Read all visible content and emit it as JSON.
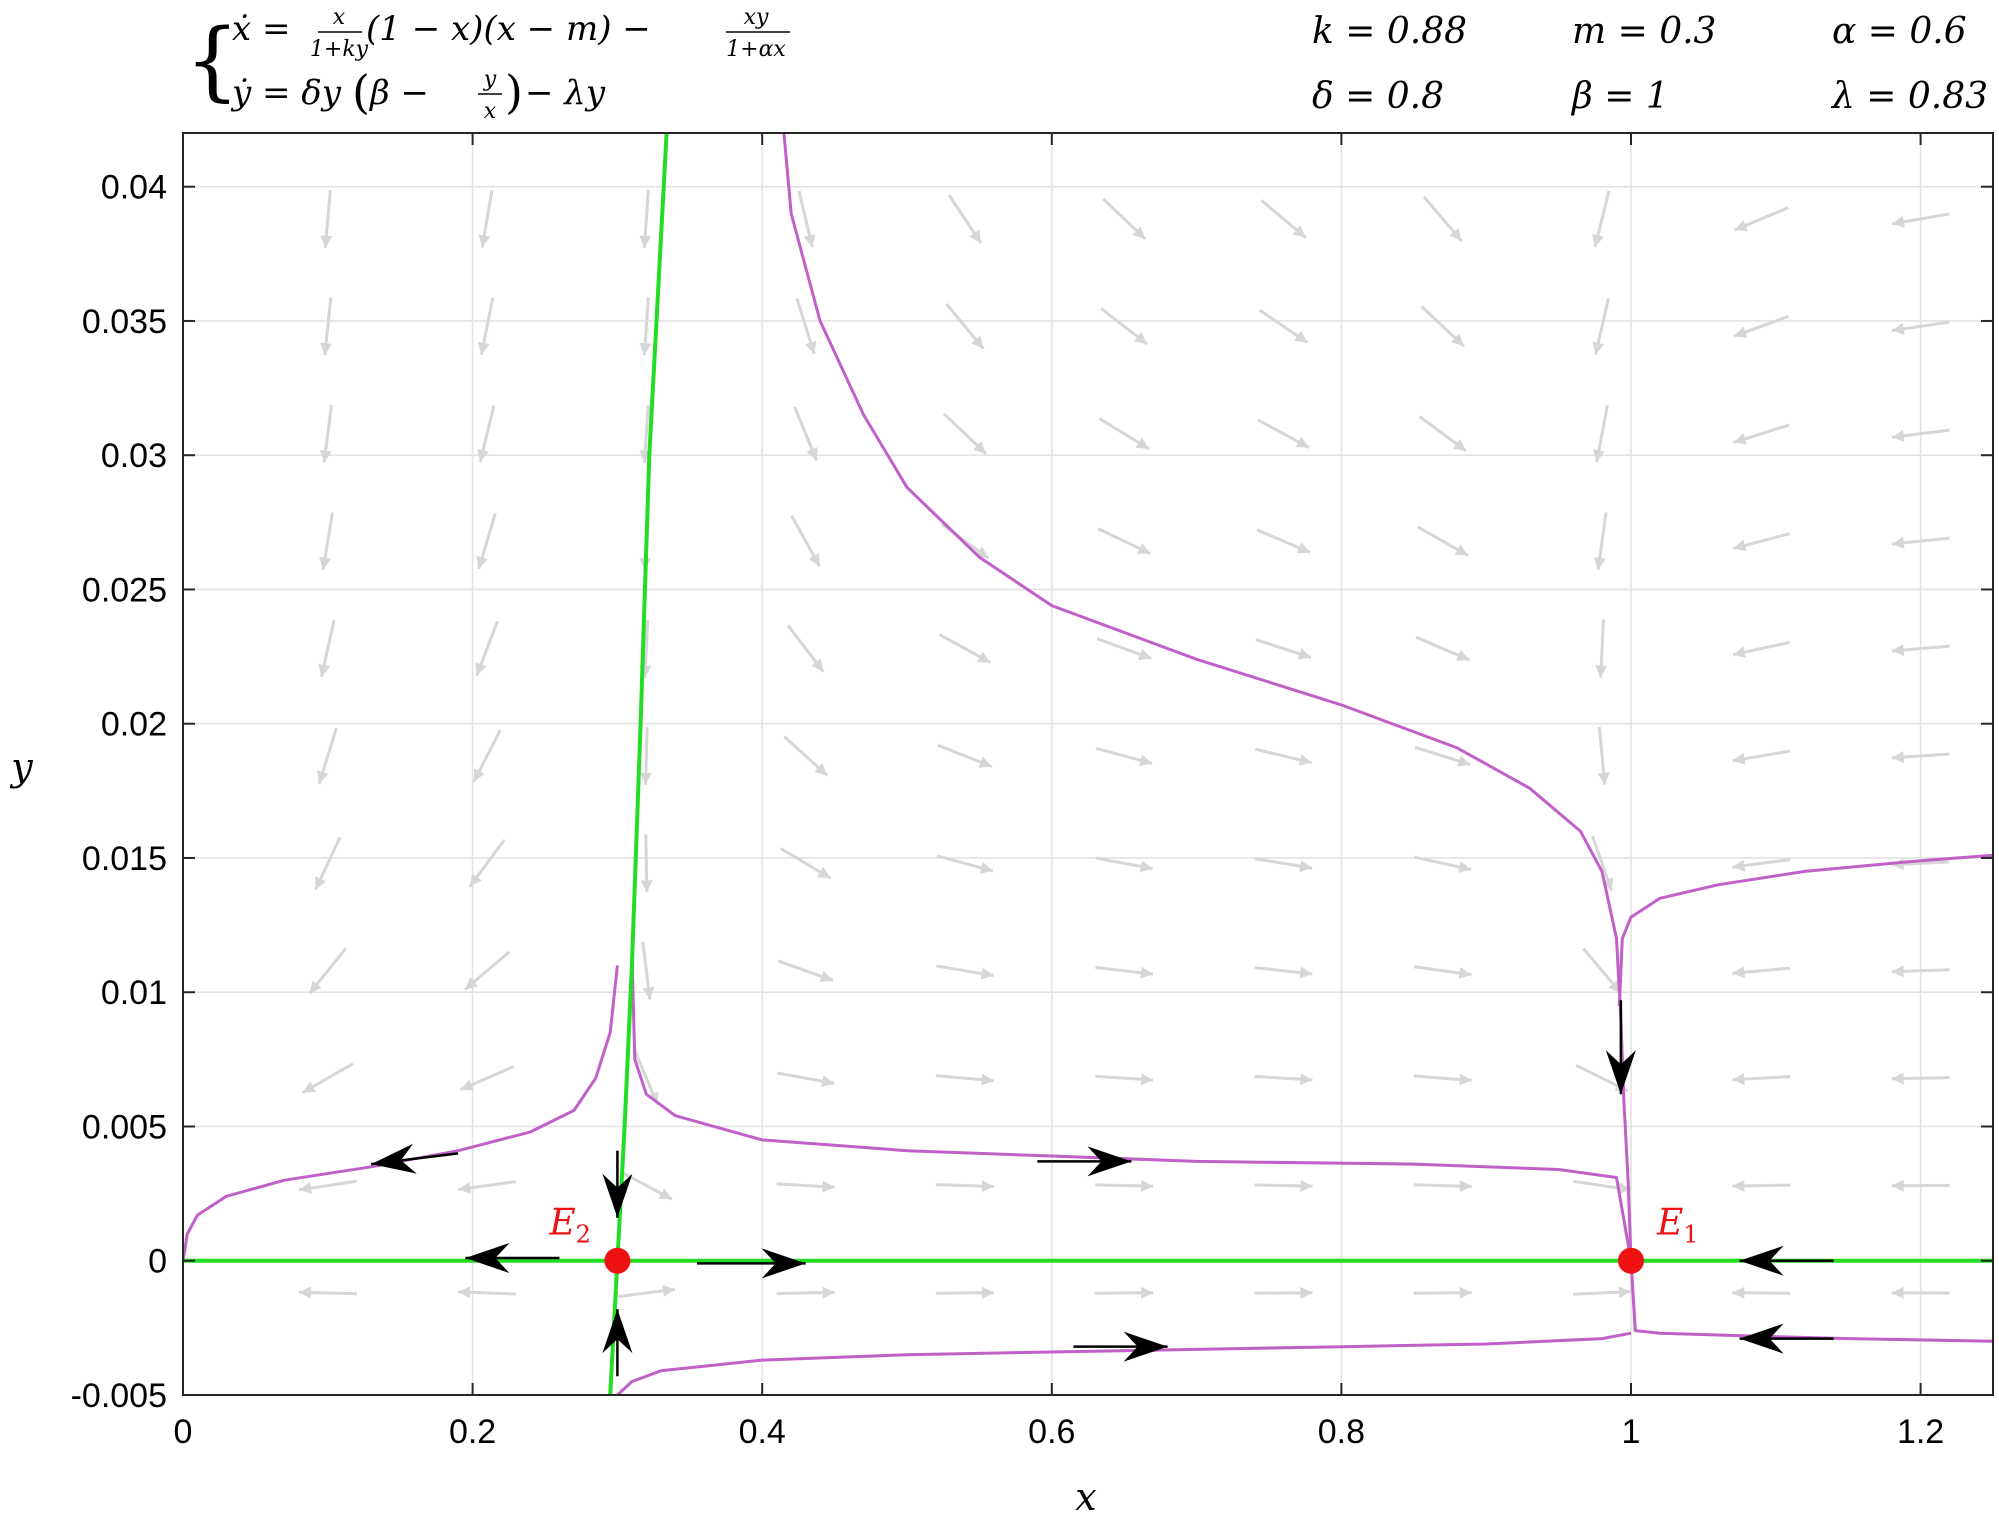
{
  "equations": {
    "line1": {
      "lhs": "ẋ = ",
      "frac1_num": "x",
      "frac1_den": "1+ky",
      "middle": "(1 − x)(x − m) − ",
      "frac2_num": "xy",
      "frac2_den": "1+αx"
    },
    "line2": {
      "lhs": "ẏ = δy",
      "paren_open": "(",
      "inner": "β − ",
      "frac_num": "y",
      "frac_den": "x",
      "paren_close": ")",
      "tail": " − λy"
    }
  },
  "parameters": [
    {
      "label": "k = 0.88"
    },
    {
      "label": "m = 0.3"
    },
    {
      "label": "α = 0.6"
    },
    {
      "label": "δ = 0.8"
    },
    {
      "label": "β = 1"
    },
    {
      "label": "λ = 0.83"
    }
  ],
  "chart_data": {
    "type": "line",
    "title": "",
    "xlabel": "x",
    "ylabel": "y",
    "xlim": [
      0,
      1.25
    ],
    "ylim": [
      -0.005,
      0.042
    ],
    "xticks": [
      0,
      0.2,
      0.4,
      0.6,
      0.8,
      1,
      1.2
    ],
    "xtick_labels": [
      "0",
      "0.2",
      "0.4",
      "0.6",
      "0.8",
      "1",
      "1.2"
    ],
    "yticks": [
      -0.005,
      0,
      0.005,
      0.01,
      0.015,
      0.02,
      0.025,
      0.03,
      0.035,
      0.04
    ],
    "ytick_labels": [
      "-0.005",
      "0",
      "0.005",
      "0.01",
      "0.015",
      "0.02",
      "0.025",
      "0.03",
      "0.035",
      "0.04"
    ],
    "grid": true,
    "colors": {
      "trajectory": "#c060c8",
      "manifold": "#22dd22",
      "equilibrium": "#ee1111",
      "vector_field": "#d6d6d6",
      "direction_arrow": "#000000"
    },
    "equilibria": [
      {
        "name": "E_1",
        "label": "E",
        "sub": "1",
        "x": 1.0,
        "y": 0.0
      },
      {
        "name": "E_2",
        "label": "E",
        "sub": "2",
        "x": 0.3,
        "y": 0.0
      }
    ],
    "manifolds": [
      {
        "points": [
          [
            0,
            0
          ],
          [
            1.25,
            0
          ]
        ]
      },
      {
        "points": [
          [
            0.295,
            -0.005
          ],
          [
            0.3,
            0
          ],
          [
            0.305,
            0.005
          ],
          [
            0.31,
            0.011
          ],
          [
            0.316,
            0.02
          ],
          [
            0.322,
            0.03
          ],
          [
            0.334,
            0.042
          ]
        ]
      }
    ],
    "trajectories": [
      {
        "points": [
          [
            0,
            0
          ],
          [
            0.003,
            0.001
          ],
          [
            0.01,
            0.0017
          ],
          [
            0.03,
            0.0024
          ],
          [
            0.07,
            0.003
          ],
          [
            0.13,
            0.0035
          ],
          [
            0.19,
            0.0041
          ],
          [
            0.24,
            0.0048
          ],
          [
            0.27,
            0.0056
          ],
          [
            0.285,
            0.0068
          ],
          [
            0.295,
            0.0085
          ],
          [
            0.3,
            0.011
          ]
        ]
      },
      {
        "points": [
          [
            0.31,
            0.0115
          ],
          [
            0.312,
            0.0075
          ],
          [
            0.32,
            0.0062
          ],
          [
            0.34,
            0.0054
          ],
          [
            0.4,
            0.0045
          ],
          [
            0.5,
            0.0041
          ],
          [
            0.6,
            0.0039
          ],
          [
            0.7,
            0.0037
          ],
          [
            0.85,
            0.0036
          ],
          [
            0.95,
            0.0034
          ],
          [
            0.99,
            0.0031
          ],
          [
            1.0,
            0.0
          ]
        ]
      },
      {
        "points": [
          [
            0.3,
            -0.005
          ],
          [
            0.31,
            -0.0045
          ],
          [
            0.33,
            -0.0041
          ],
          [
            0.4,
            -0.0037
          ],
          [
            0.5,
            -0.0035
          ],
          [
            0.6,
            -0.0034
          ],
          [
            0.7,
            -0.0033
          ],
          [
            0.8,
            -0.0032
          ],
          [
            0.9,
            -0.0031
          ],
          [
            0.98,
            -0.0029
          ],
          [
            1.0,
            -0.0027
          ]
        ]
      },
      {
        "points": [
          [
            1.0,
            0.0
          ],
          [
            1.003,
            -0.0026
          ],
          [
            1.02,
            -0.0027
          ],
          [
            1.08,
            -0.0028
          ],
          [
            1.15,
            -0.0029
          ],
          [
            1.25,
            -0.003
          ]
        ]
      },
      {
        "points": [
          [
            0.415,
            0.042
          ],
          [
            0.42,
            0.039
          ],
          [
            0.44,
            0.035
          ],
          [
            0.47,
            0.0315
          ],
          [
            0.5,
            0.0288
          ],
          [
            0.55,
            0.0262
          ],
          [
            0.6,
            0.0244
          ],
          [
            0.7,
            0.0224
          ],
          [
            0.8,
            0.0207
          ],
          [
            0.88,
            0.0191
          ],
          [
            0.93,
            0.0176
          ],
          [
            0.965,
            0.016
          ],
          [
            0.98,
            0.0145
          ],
          [
            0.99,
            0.012
          ],
          [
            0.993,
            0.009
          ],
          [
            0.995,
            0.006
          ],
          [
            0.998,
            0.003
          ],
          [
            1.0,
            0.0
          ]
        ]
      },
      {
        "points": [
          [
            0.992,
            0.0095
          ],
          [
            0.994,
            0.012
          ],
          [
            1.0,
            0.0128
          ],
          [
            1.02,
            0.0135
          ],
          [
            1.06,
            0.014
          ],
          [
            1.12,
            0.0145
          ],
          [
            1.2,
            0.0149
          ],
          [
            1.25,
            0.0151
          ]
        ]
      }
    ],
    "direction_arrows": [
      {
        "x": 0.13,
        "y": 0.0036,
        "dx": -0.06,
        "dy": -0.0004
      },
      {
        "x": 0.3,
        "y": 0.0016,
        "dx": 0.0,
        "dy": -0.0025
      },
      {
        "x": 0.3,
        "y": -0.0018,
        "dx": 0.0,
        "dy": 0.0025
      },
      {
        "x": 0.195,
        "y": 0.0001,
        "dx": -0.065,
        "dy": 0.0
      },
      {
        "x": 0.43,
        "y": -0.0001,
        "dx": 0.075,
        "dy": 0.0
      },
      {
        "x": 0.655,
        "y": 0.0037,
        "dx": 0.065,
        "dy": 0.0
      },
      {
        "x": 0.68,
        "y": -0.0032,
        "dx": 0.065,
        "dy": 0.0
      },
      {
        "x": 0.993,
        "y": 0.0062,
        "dx": 0.0,
        "dy": -0.0035
      },
      {
        "x": 1.075,
        "y": 0.0,
        "dx": -0.065,
        "dy": 0.0
      },
      {
        "x": 1.075,
        "y": -0.0029,
        "dx": -0.065,
        "dy": 0.0
      }
    ]
  }
}
